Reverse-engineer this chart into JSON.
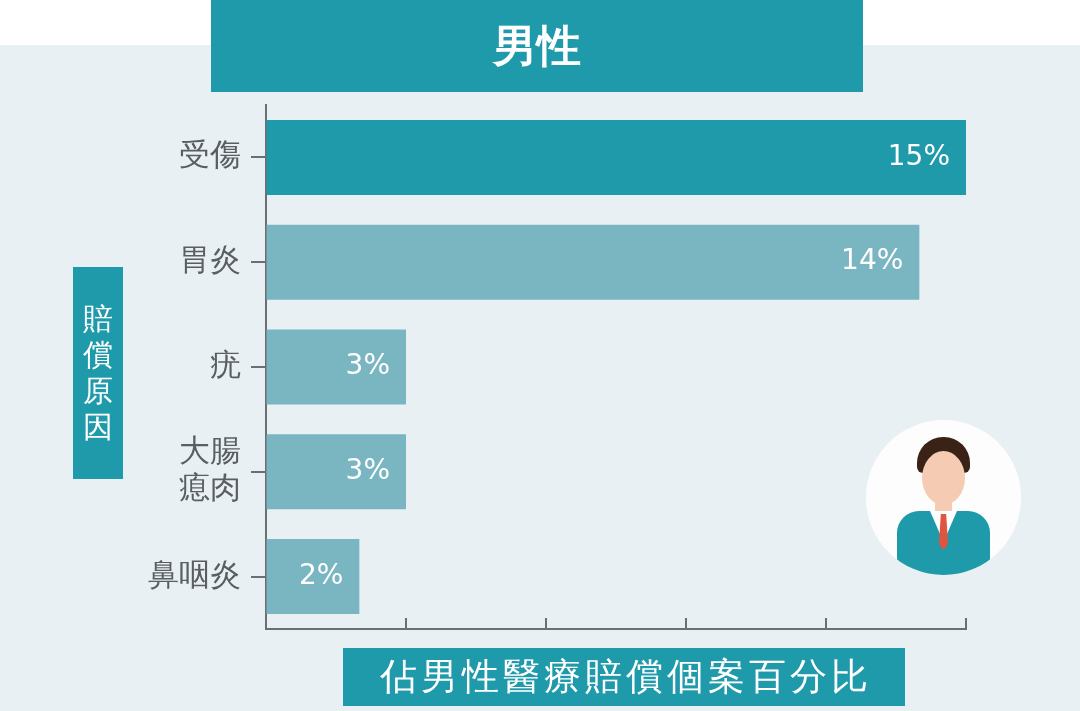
{
  "chart_data": {
    "type": "bar",
    "orientation": "horizontal",
    "title": "男性",
    "xlabel": "佔男性醫療賠償個案百分比",
    "ylabel": "賠償原因",
    "categories": [
      "受傷",
      "胃炎",
      "疣",
      "大腸瘜肉",
      "鼻咽炎"
    ],
    "values": [
      15,
      14,
      3,
      3,
      2
    ],
    "colors": [
      "#1f9aaa",
      "#7ab5c2",
      "#7ab5c2",
      "#7ab5c2",
      "#7ab5c2"
    ],
    "value_labels": [
      "15%",
      "14%",
      "3%",
      "3%",
      "2%"
    ],
    "xlim": [
      0,
      15
    ],
    "xticks": [
      {
        "value": 0,
        "label": null
      },
      {
        "value": 3,
        "label": null
      },
      {
        "value": 6,
        "label": null
      },
      {
        "value": 9,
        "label": null
      },
      {
        "value": 12,
        "label": null
      },
      {
        "value": 15,
        "label": null
      }
    ],
    "tick_labels": "y"
  }
}
